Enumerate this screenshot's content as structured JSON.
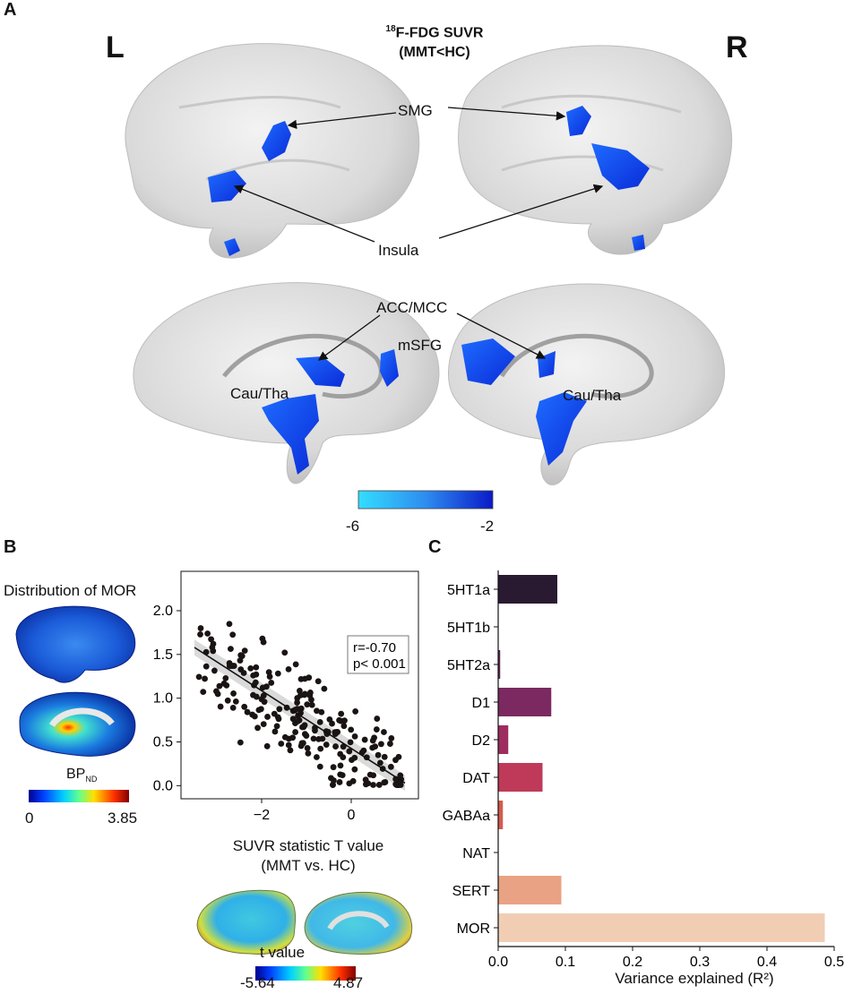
{
  "panel_a": {
    "letter": "A",
    "left_label": "L",
    "right_label": "R",
    "title_sup": "18",
    "title_main": "F-FDG SUVR",
    "title_sub": "(MMT<HC)",
    "regions": {
      "smg": "SMG",
      "insula": "Insula",
      "acc_mcc": "ACC/MCC",
      "msfg": "mSFG",
      "cau_tha_left": "Cau/Tha",
      "cau_tha_right": "Cau/Tha"
    },
    "colorbar": {
      "min_label": "-6",
      "max_label": "-2",
      "color_low": "#33ddff",
      "color_high": "#0a1ac8"
    }
  },
  "panel_b": {
    "letter": "B",
    "map_title": "Distribution of MOR",
    "map_colorbar_label": "BP",
    "map_colorbar_label_sub": "ND",
    "map_colorbar_min": "0",
    "map_colorbar_max": "3.85",
    "tmap_colorbar_label": "t value",
    "tmap_colorbar_min": "-5.64",
    "tmap_colorbar_max": "4.87",
    "stats_r": "r=-0.70",
    "stats_p": "p< 0.001"
  },
  "panel_c": {
    "letter": "C"
  },
  "chart_data": [
    {
      "type": "scatter",
      "xlabel": "SUVR statistic T value",
      "xlabel_line2": "(MMT vs. HC)",
      "ylabel": "",
      "xlim": [
        -3.8,
        1.5
      ],
      "ylim": [
        -0.15,
        2.45
      ],
      "xticks": [
        -2,
        0
      ],
      "yticks": [
        0.0,
        0.5,
        1.0,
        1.5,
        2.0
      ],
      "ytick_labels": [
        "0.0",
        "0.5",
        "1.0",
        "1.5",
        "2.0"
      ],
      "regression": {
        "x": [
          -3.5,
          1.2
        ],
        "y": [
          1.58,
          0.03
        ]
      },
      "point_color": "#1a1413"
    },
    {
      "type": "bar",
      "orientation": "horizontal",
      "categories": [
        "5HT1a",
        "5HT1b",
        "5HT2a",
        "D1",
        "D2",
        "DAT",
        "GABAa",
        "NAT",
        "SERT",
        "MOR"
      ],
      "values": [
        0.088,
        0.0,
        0.003,
        0.079,
        0.015,
        0.066,
        0.007,
        0.0,
        0.094,
        0.486
      ],
      "colors": [
        "#2a1a31",
        "#3a1f45",
        "#5a2557",
        "#7b2960",
        "#9d2c5f",
        "#be3a58",
        "#d65a4f",
        "#e07a5a",
        "#e9a283",
        "#f1cdb4"
      ],
      "xlabel": "Variance explained (R²)",
      "xlim": [
        0,
        0.5
      ],
      "xticks": [
        0.0,
        0.1,
        0.2,
        0.3,
        0.4,
        0.5
      ],
      "xtick_labels": [
        "0.0",
        "0.1",
        "0.2",
        "0.3",
        "0.4",
        "0.5"
      ]
    }
  ]
}
